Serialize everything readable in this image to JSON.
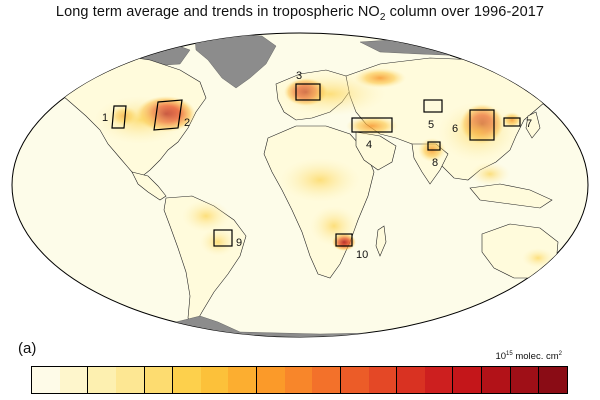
{
  "figure": {
    "title_prefix": "Long term average and trends in tropospheric NO",
    "title_sub": "2",
    "title_suffix": " column over 1996-2017",
    "panel_label": "(a)"
  },
  "colorbar": {
    "units_prefix": "10",
    "units_exp": "15",
    "units_mid": " molec. cm",
    "units_exp2": "2",
    "segments": [
      "#fefbe8",
      "#fef6cc",
      "#fdf0b0",
      "#fde793",
      "#fddc70",
      "#fdd04c",
      "#fcc13a",
      "#fcae30",
      "#fb9a29",
      "#f8862a",
      "#f3712a",
      "#ec5c28",
      "#e44826",
      "#d93222",
      "#cd1f1f",
      "#c4161a",
      "#b21218",
      "#9f0f17",
      "#8a0c15"
    ],
    "divided_after": [
      1,
      3,
      4,
      7,
      10,
      12,
      14,
      15,
      16,
      17
    ]
  },
  "map": {
    "ocean_color": "#fdfce9",
    "land_color": "#fffbdc",
    "ice_color": "#8c8c8c",
    "regions": [
      {
        "id": "1",
        "label": "1"
      },
      {
        "id": "2",
        "label": "2"
      },
      {
        "id": "3",
        "label": "3"
      },
      {
        "id": "4",
        "label": "4"
      },
      {
        "id": "5",
        "label": "5"
      },
      {
        "id": "6",
        "label": "6"
      },
      {
        "id": "7",
        "label": "7"
      },
      {
        "id": "8",
        "label": "8"
      },
      {
        "id": "9",
        "label": "9"
      },
      {
        "id": "10",
        "label": "10"
      }
    ]
  }
}
